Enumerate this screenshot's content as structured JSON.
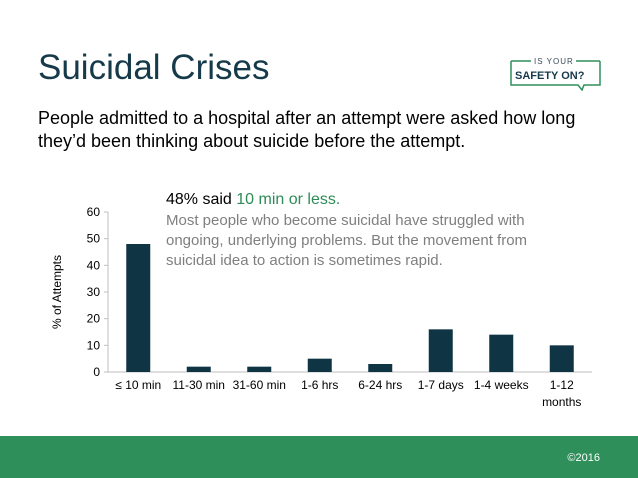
{
  "slide": {
    "title": "Suicidal Crises",
    "subtitle": "People admitted to a hospital after an attempt were asked how long they’d been thinking about suicide before the attempt.",
    "annotation": {
      "lead": "48% said ",
      "highlight": "10 min or less.",
      "body": "Most people who become suicidal have struggled with ongoing, underlying problems. But the movement from suicidal idea to action is sometimes rapid."
    },
    "logo": {
      "line1": "IS YOUR",
      "line2": "SAFETY ON?"
    },
    "footer": {
      "copyright": "©2016"
    }
  },
  "colors": {
    "bar": "#0f3545",
    "footer": "#2f8f5b",
    "highlight": "#2e8b57"
  },
  "chart_data": {
    "type": "bar",
    "title": "",
    "xlabel": "",
    "ylabel": "% of Attempts",
    "ylim": [
      0,
      60
    ],
    "yticks": [
      0,
      10,
      20,
      30,
      40,
      50,
      60
    ],
    "categories": [
      "≤ 10 min",
      "11-30 min",
      "31-60 min",
      "1-6 hrs",
      "6-24 hrs",
      "1-7 days",
      "1-4 weeks",
      "1-12 months"
    ],
    "values": [
      48,
      2,
      2,
      5,
      3,
      16,
      14,
      10
    ],
    "grid": false,
    "legend": "none"
  }
}
